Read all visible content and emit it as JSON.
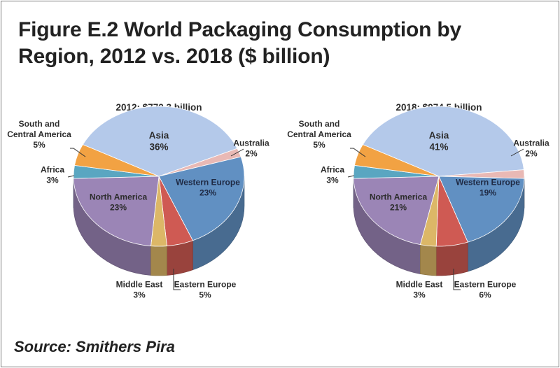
{
  "title_line1": "Figure E.2 World Packaging Consumption by",
  "title_line2": "Region, 2012 vs. 2018 ($ billion)",
  "source": "Source: Smithers Pira",
  "colors": {
    "Asia": "#b4c9ea",
    "Australia": "#e9b9b5",
    "Western Europe": "#6190c2",
    "Eastern Europe": "#cf5a53",
    "Middle East": "#dcb767",
    "North America": "#9b85b6",
    "Africa": "#5aa6c1",
    "South and Central America": "#f2a243"
  },
  "chart_data": [
    {
      "type": "pie",
      "title": "2012: $772.3 billion",
      "slices": [
        {
          "name": "Asia",
          "value": 36,
          "label_lines": [
            "Asia"
          ],
          "pct_label": "36%"
        },
        {
          "name": "Australia",
          "value": 2,
          "label_lines": [
            "Australia"
          ],
          "pct_label": "2%"
        },
        {
          "name": "Western Europe",
          "value": 23,
          "label_lines": [
            "Western Europe"
          ],
          "pct_label": "23%"
        },
        {
          "name": "Eastern Europe",
          "value": 5,
          "label_lines": [
            "Eastern Europe"
          ],
          "pct_label": "5%"
        },
        {
          "name": "Middle East",
          "value": 3,
          "label_lines": [
            "Middle East"
          ],
          "pct_label": "3%"
        },
        {
          "name": "North America",
          "value": 23,
          "label_lines": [
            "North America"
          ],
          "pct_label": "23%"
        },
        {
          "name": "Africa",
          "value": 3,
          "label_lines": [
            "Africa"
          ],
          "pct_label": "3%"
        },
        {
          "name": "South and Central America",
          "value": 5,
          "label_lines": [
            "South and",
            "Central America"
          ],
          "pct_label": "5%"
        }
      ]
    },
    {
      "type": "pie",
      "title": "2018: $974.5 billion",
      "slices": [
        {
          "name": "Asia",
          "value": 41,
          "label_lines": [
            "Asia"
          ],
          "pct_label": "41%"
        },
        {
          "name": "Australia",
          "value": 2,
          "label_lines": [
            "Australia"
          ],
          "pct_label": "2%"
        },
        {
          "name": "Western Europe",
          "value": 19,
          "label_lines": [
            "Western Europe"
          ],
          "pct_label": "19%"
        },
        {
          "name": "Eastern Europe",
          "value": 6,
          "label_lines": [
            "Eastern Europe"
          ],
          "pct_label": "6%"
        },
        {
          "name": "Middle East",
          "value": 3,
          "label_lines": [
            "Middle East"
          ],
          "pct_label": "3%"
        },
        {
          "name": "North America",
          "value": 21,
          "label_lines": [
            "North America"
          ],
          "pct_label": "21%"
        },
        {
          "name": "Africa",
          "value": 3,
          "label_lines": [
            "Africa"
          ],
          "pct_label": "3%"
        },
        {
          "name": "South and Central America",
          "value": 5,
          "label_lines": [
            "South and",
            "Central America"
          ],
          "pct_label": "5%"
        }
      ]
    }
  ]
}
